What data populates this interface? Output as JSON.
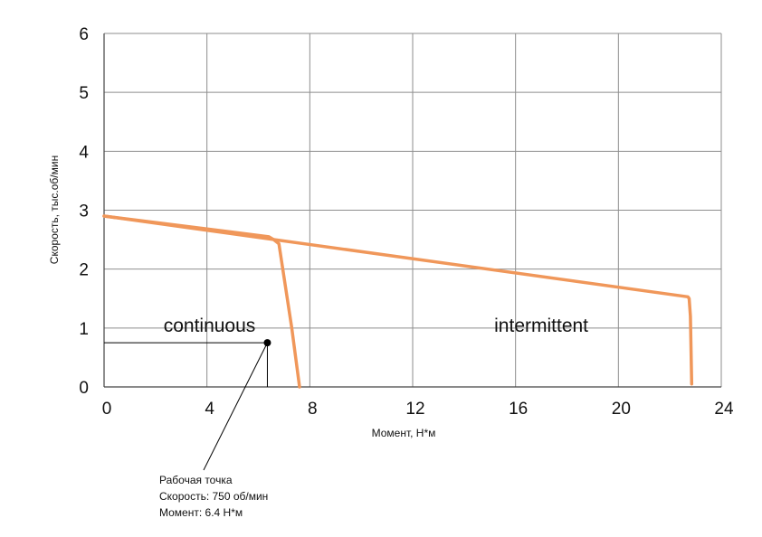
{
  "chart_data": {
    "type": "line",
    "xlabel": "Момент, Н*м",
    "ylabel": "Скорость, тыс.об/мин",
    "xlim": [
      0,
      24
    ],
    "ylim": [
      0,
      6
    ],
    "xticks": [
      "0",
      "4",
      "8",
      "12",
      "16",
      "20",
      "24"
    ],
    "yticks": [
      "0",
      "1",
      "2",
      "3",
      "4",
      "5",
      "6"
    ],
    "grid": true,
    "line_color": "#F0975A",
    "series": [
      {
        "name": "",
        "x": [
          0,
          6.4,
          6.6,
          6.8,
          7.3,
          7.6
        ],
        "y": [
          2.9,
          2.55,
          2.5,
          2.43,
          1.0,
          0.0
        ]
      },
      {
        "name": "",
        "x": [
          0,
          22.7,
          22.75,
          22.8,
          22.85
        ],
        "y": [
          2.9,
          1.53,
          1.5,
          1.2,
          0.05
        ]
      }
    ],
    "regions": [
      {
        "label": "continuous",
        "x": 4.1,
        "y": 1.0
      },
      {
        "label": "intermittent",
        "x": 17.0,
        "y": 1.0
      }
    ],
    "operating_point": {
      "x": 6.35,
      "y": 0.75
    }
  },
  "annotation": {
    "line1": "Рабочая точка",
    "line2": "Скорость: 750 об/мин",
    "line3": "Момент: 6.4 Н*м"
  }
}
